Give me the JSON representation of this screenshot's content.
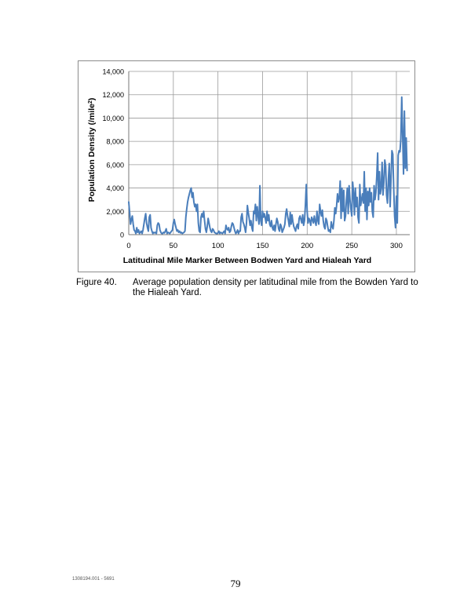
{
  "chart_data": {
    "type": "line",
    "title": "",
    "xlabel": "Latitudinal Mile Marker Between Bodwen Yard and Hialeah Yard",
    "ylabel_main": "Population Density (/mile",
    "ylabel_sup": "2",
    "ylabel_end": ")",
    "xlim": [
      0,
      315
    ],
    "ylim": [
      0,
      14000
    ],
    "xticks": [
      0,
      50,
      100,
      150,
      200,
      250,
      300
    ],
    "xtick_labels": [
      "0",
      "50",
      "100",
      "150",
      "200",
      "250",
      "300"
    ],
    "yticks": [
      0,
      2000,
      4000,
      6000,
      8000,
      10000,
      12000,
      14000
    ],
    "ytick_labels": [
      "0",
      "2,000",
      "4,000",
      "6,000",
      "8,000",
      "10,000",
      "12,000",
      "14,000"
    ],
    "grid": true,
    "line_color": "#4a7ebb",
    "series": [
      {
        "values": [
          [
            0,
            2800
          ],
          [
            1,
            1900
          ],
          [
            2,
            900
          ],
          [
            3,
            1300
          ],
          [
            4,
            1600
          ],
          [
            5,
            900
          ],
          [
            6,
            400
          ],
          [
            7,
            300
          ],
          [
            8,
            100
          ],
          [
            9,
            600
          ],
          [
            10,
            200
          ],
          [
            11,
            400
          ],
          [
            12,
            100
          ],
          [
            13,
            200
          ],
          [
            14,
            300
          ],
          [
            15,
            100
          ],
          [
            16,
            400
          ],
          [
            17,
            900
          ],
          [
            18,
            1400
          ],
          [
            19,
            1800
          ],
          [
            20,
            1000
          ],
          [
            21,
            600
          ],
          [
            22,
            300
          ],
          [
            23,
            1500
          ],
          [
            24,
            1700
          ],
          [
            25,
            600
          ],
          [
            26,
            300
          ],
          [
            27,
            100
          ],
          [
            28,
            200
          ],
          [
            29,
            150
          ],
          [
            30,
            200
          ],
          [
            31,
            100
          ],
          [
            32,
            800
          ],
          [
            33,
            1000
          ],
          [
            34,
            900
          ],
          [
            35,
            400
          ],
          [
            36,
            200
          ],
          [
            37,
            100
          ],
          [
            38,
            100
          ],
          [
            39,
            200
          ],
          [
            40,
            150
          ],
          [
            41,
            300
          ],
          [
            42,
            500
          ],
          [
            43,
            100
          ],
          [
            44,
            200
          ],
          [
            45,
            150
          ],
          [
            46,
            100
          ],
          [
            47,
            200
          ],
          [
            48,
            300
          ],
          [
            49,
            400
          ],
          [
            50,
            1000
          ],
          [
            51,
            1300
          ],
          [
            52,
            900
          ],
          [
            53,
            600
          ],
          [
            54,
            300
          ],
          [
            55,
            400
          ],
          [
            56,
            200
          ],
          [
            57,
            300
          ],
          [
            58,
            150
          ],
          [
            59,
            200
          ],
          [
            60,
            100
          ],
          [
            61,
            150
          ],
          [
            62,
            200
          ],
          [
            63,
            300
          ],
          [
            64,
            1500
          ],
          [
            65,
            2200
          ],
          [
            66,
            2800
          ],
          [
            67,
            3200
          ],
          [
            68,
            3500
          ],
          [
            69,
            3800
          ],
          [
            70,
            4000
          ],
          [
            71,
            3200
          ],
          [
            72,
            3600
          ],
          [
            73,
            2800
          ],
          [
            74,
            2400
          ],
          [
            75,
            2600
          ],
          [
            76,
            2000
          ],
          [
            77,
            2600
          ],
          [
            78,
            1000
          ],
          [
            79,
            300
          ],
          [
            80,
            200
          ],
          [
            81,
            1500
          ],
          [
            82,
            1800
          ],
          [
            83,
            1500
          ],
          [
            84,
            2000
          ],
          [
            85,
            1200
          ],
          [
            86,
            500
          ],
          [
            87,
            200
          ],
          [
            88,
            700
          ],
          [
            89,
            1400
          ],
          [
            90,
            1000
          ],
          [
            91,
            600
          ],
          [
            92,
            300
          ],
          [
            93,
            200
          ],
          [
            94,
            500
          ],
          [
            95,
            400
          ],
          [
            96,
            200
          ],
          [
            97,
            150
          ],
          [
            98,
            100
          ],
          [
            99,
            100
          ],
          [
            100,
            150
          ],
          [
            101,
            300
          ],
          [
            102,
            100
          ],
          [
            103,
            200
          ],
          [
            104,
            150
          ],
          [
            105,
            100
          ],
          [
            106,
            200
          ],
          [
            107,
            300
          ],
          [
            108,
            100
          ],
          [
            109,
            800
          ],
          [
            110,
            500
          ],
          [
            111,
            400
          ],
          [
            112,
            600
          ],
          [
            113,
            200
          ],
          [
            114,
            300
          ],
          [
            115,
            700
          ],
          [
            116,
            1000
          ],
          [
            117,
            900
          ],
          [
            118,
            600
          ],
          [
            119,
            300
          ],
          [
            120,
            100
          ],
          [
            121,
            200
          ],
          [
            122,
            400
          ],
          [
            123,
            100
          ],
          [
            124,
            300
          ],
          [
            125,
            300
          ],
          [
            126,
            1500
          ],
          [
            127,
            1800
          ],
          [
            128,
            1100
          ],
          [
            129,
            900
          ],
          [
            130,
            600
          ],
          [
            131,
            200
          ],
          [
            132,
            1000
          ],
          [
            133,
            2500
          ],
          [
            134,
            1900
          ],
          [
            135,
            1400
          ],
          [
            136,
            800
          ],
          [
            137,
            1200
          ],
          [
            138,
            600
          ],
          [
            139,
            300
          ],
          [
            140,
            2000
          ],
          [
            141,
            1800
          ],
          [
            142,
            2600
          ],
          [
            143,
            1200
          ],
          [
            144,
            2400
          ],
          [
            145,
            1600
          ],
          [
            146,
            900
          ],
          [
            147,
            4200
          ],
          [
            148,
            1200
          ],
          [
            149,
            800
          ],
          [
            150,
            2000
          ],
          [
            151,
            1500
          ],
          [
            152,
            1800
          ],
          [
            153,
            1400
          ],
          [
            154,
            1000
          ],
          [
            155,
            2000
          ],
          [
            156,
            1200
          ],
          [
            157,
            1700
          ],
          [
            158,
            900
          ],
          [
            159,
            700
          ],
          [
            160,
            1200
          ],
          [
            161,
            600
          ],
          [
            162,
            400
          ],
          [
            163,
            800
          ],
          [
            164,
            300
          ],
          [
            165,
            900
          ],
          [
            166,
            1400
          ],
          [
            167,
            1100
          ],
          [
            168,
            500
          ],
          [
            169,
            300
          ],
          [
            170,
            900
          ],
          [
            171,
            700
          ],
          [
            172,
            200
          ],
          [
            173,
            400
          ],
          [
            174,
            600
          ],
          [
            175,
            900
          ],
          [
            176,
            1800
          ],
          [
            177,
            2200
          ],
          [
            178,
            1600
          ],
          [
            179,
            1200
          ],
          [
            180,
            700
          ],
          [
            181,
            1900
          ],
          [
            182,
            900
          ],
          [
            183,
            1700
          ],
          [
            184,
            1100
          ],
          [
            185,
            700
          ],
          [
            186,
            500
          ],
          [
            187,
            300
          ],
          [
            188,
            700
          ],
          [
            189,
            900
          ],
          [
            190,
            500
          ],
          [
            191,
            1400
          ],
          [
            192,
            1600
          ],
          [
            193,
            1300
          ],
          [
            194,
            1000
          ],
          [
            195,
            1700
          ],
          [
            196,
            800
          ],
          [
            197,
            1200
          ],
          [
            198,
            2500
          ],
          [
            199,
            4300
          ],
          [
            200,
            2000
          ],
          [
            201,
            1000
          ],
          [
            202,
            1400
          ],
          [
            203,
            1200
          ],
          [
            204,
            800
          ],
          [
            205,
            1500
          ],
          [
            206,
            1300
          ],
          [
            207,
            1000
          ],
          [
            208,
            1600
          ],
          [
            209,
            1100
          ],
          [
            210,
            800
          ],
          [
            211,
            2000
          ],
          [
            212,
            1200
          ],
          [
            213,
            900
          ],
          [
            214,
            2600
          ],
          [
            215,
            2000
          ],
          [
            216,
            1600
          ],
          [
            217,
            2100
          ],
          [
            218,
            1200
          ],
          [
            219,
            700
          ],
          [
            220,
            500
          ],
          [
            221,
            1400
          ],
          [
            222,
            1200
          ],
          [
            223,
            700
          ],
          [
            224,
            300
          ],
          [
            225,
            400
          ],
          [
            226,
            200
          ],
          [
            227,
            1100
          ],
          [
            228,
            700
          ],
          [
            229,
            500
          ],
          [
            230,
            1200
          ],
          [
            231,
            2300
          ],
          [
            232,
            1800
          ],
          [
            233,
            2500
          ],
          [
            234,
            3500
          ],
          [
            235,
            2800
          ],
          [
            236,
            3200
          ],
          [
            237,
            4600
          ],
          [
            238,
            1400
          ],
          [
            239,
            4000
          ],
          [
            240,
            2000
          ],
          [
            241,
            3800
          ],
          [
            242,
            1200
          ],
          [
            243,
            1600
          ],
          [
            244,
            3000
          ],
          [
            245,
            4000
          ],
          [
            246,
            1800
          ],
          [
            247,
            4200
          ],
          [
            248,
            3000
          ],
          [
            249,
            2200
          ],
          [
            250,
            1600
          ],
          [
            251,
            4500
          ],
          [
            252,
            3600
          ],
          [
            253,
            1700
          ],
          [
            254,
            4000
          ],
          [
            255,
            2400
          ],
          [
            256,
            3200
          ],
          [
            257,
            1500
          ],
          [
            258,
            1000
          ],
          [
            259,
            4300
          ],
          [
            260,
            2500
          ],
          [
            261,
            3000
          ],
          [
            262,
            3500
          ],
          [
            263,
            2700
          ],
          [
            264,
            5400
          ],
          [
            265,
            2000
          ],
          [
            266,
            4000
          ],
          [
            267,
            1300
          ],
          [
            268,
            3700
          ],
          [
            269,
            2500
          ],
          [
            270,
            4000
          ],
          [
            271,
            2800
          ],
          [
            272,
            3600
          ],
          [
            273,
            2000
          ],
          [
            274,
            1500
          ],
          [
            275,
            4200
          ],
          [
            276,
            3000
          ],
          [
            277,
            3600
          ],
          [
            278,
            5000
          ],
          [
            279,
            7000
          ],
          [
            280,
            3000
          ],
          [
            281,
            5400
          ],
          [
            282,
            3500
          ],
          [
            283,
            4000
          ],
          [
            284,
            6200
          ],
          [
            285,
            3400
          ],
          [
            286,
            4500
          ],
          [
            287,
            6400
          ],
          [
            288,
            5900
          ],
          [
            289,
            3400
          ],
          [
            290,
            2700
          ],
          [
            291,
            4700
          ],
          [
            292,
            6100
          ],
          [
            293,
            2400
          ],
          [
            294,
            4900
          ],
          [
            295,
            7200
          ],
          [
            296,
            6900
          ],
          [
            297,
            4000
          ],
          [
            298,
            1600
          ],
          [
            299,
            600
          ],
          [
            300,
            3300
          ],
          [
            301,
            1000
          ],
          [
            302,
            6800
          ],
          [
            303,
            7200
          ],
          [
            304,
            7100
          ],
          [
            305,
            8200
          ],
          [
            306,
            11800
          ],
          [
            307,
            8600
          ],
          [
            308,
            5200
          ],
          [
            309,
            10600
          ],
          [
            310,
            5700
          ],
          [
            311,
            8300
          ],
          [
            312,
            5500
          ]
        ]
      }
    ]
  },
  "caption": {
    "number": "Figure 40.",
    "text": "Average population density per latitudinal mile from the Bowden Yard to the Hialeah Yard."
  },
  "footer": {
    "code": "1308194.001 - 5691",
    "page_number": "79"
  }
}
